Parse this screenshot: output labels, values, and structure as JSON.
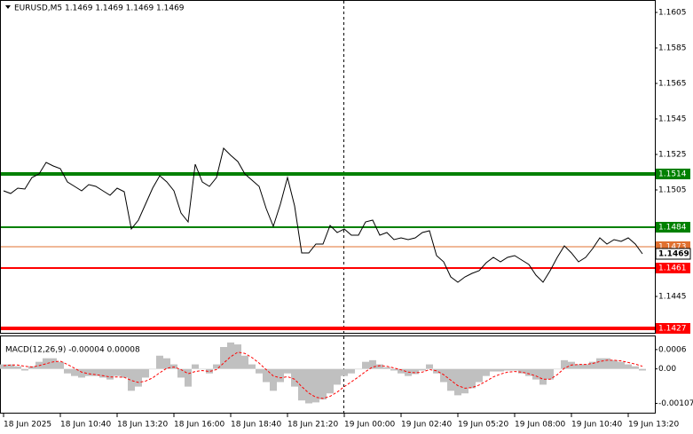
{
  "chart_data": [
    {
      "type": "price",
      "title": "EURUSD,M5  1.1469 1.1469 1.1469 1.1469",
      "xticks": [
        {
          "value": 0,
          "label": "18 Jun 2025"
        },
        {
          "value": 8,
          "label": "18 Jun 10:40"
        },
        {
          "value": 16,
          "label": "18 Jun 13:20"
        },
        {
          "value": 24,
          "label": "18 Jun 16:00"
        },
        {
          "value": 32,
          "label": "18 Jun 18:40"
        },
        {
          "value": 40,
          "label": "18 Jun 21:20"
        },
        {
          "value": 48,
          "label": "19 Jun 00:00"
        },
        {
          "value": 56,
          "label": "19 Jun 02:40"
        },
        {
          "value": 64,
          "label": "19 Jun 05:20"
        },
        {
          "value": 72,
          "label": "19 Jun 08:00"
        },
        {
          "value": 80,
          "label": "19 Jun 10:40"
        },
        {
          "value": 88,
          "label": "19 Jun 13:20"
        }
      ],
      "xlim": [
        -0.5,
        91.75
      ],
      "ylim": [
        1.14245,
        1.1612
      ],
      "yticks": [
        1.1605,
        1.1585,
        1.1565,
        1.1545,
        1.1525,
        1.1505,
        1.1445
      ],
      "series": [
        {
          "color": "#000000",
          "values": [
            1.15045,
            1.1503,
            1.1506,
            1.15055,
            1.1512,
            1.1514,
            1.15205,
            1.15185,
            1.1517,
            1.15095,
            1.1507,
            1.15045,
            1.1508,
            1.1507,
            1.15045,
            1.1502,
            1.1506,
            1.1504,
            1.1483,
            1.1488,
            1.1497,
            1.1506,
            1.1513,
            1.15095,
            1.15045,
            1.1492,
            1.1487,
            1.15195,
            1.15095,
            1.1507,
            1.1512,
            1.15285,
            1.15245,
            1.1521,
            1.1514,
            1.15105,
            1.1507,
            1.14945,
            1.14845,
            1.1497,
            1.1512,
            1.1496,
            1.14695,
            1.14695,
            1.14745,
            1.14745,
            1.1485,
            1.1481,
            1.1483,
            1.14795,
            1.14795,
            1.1487,
            1.1488,
            1.14795,
            1.1481,
            1.1477,
            1.1478,
            1.1477,
            1.1478,
            1.1481,
            1.1482,
            1.1468,
            1.14645,
            1.1456,
            1.1453,
            1.1456,
            1.1458,
            1.14595,
            1.1464,
            1.1467,
            1.14645,
            1.1467,
            1.1468,
            1.14655,
            1.1463,
            1.1457,
            1.1453,
            1.14595,
            1.1467,
            1.14735,
            1.14695,
            1.14645,
            1.1467,
            1.1472,
            1.1478,
            1.14745,
            1.1477,
            1.1476,
            1.1478,
            1.14745,
            1.1469
          ]
        }
      ],
      "levels": [
        {
          "value": 1.1514,
          "color": "#008000",
          "style": "thick"
        },
        {
          "value": 1.1484,
          "color": "#008000",
          "style": "medium"
        },
        {
          "value": 1.1473,
          "color": "#e07030",
          "style": "thin"
        },
        {
          "value": 1.1461,
          "color": "#ff0000",
          "style": "medium"
        },
        {
          "value": 1.1427,
          "color": "#ff0000",
          "style": "thick"
        }
      ],
      "last_price": 1.1469
    },
    {
      "type": "macd",
      "title": "MACD(12,26,9) -0.00004 0.00008",
      "ylim": [
        -0.00136,
        0.00101
      ],
      "yticks": [
        0.0006,
        {
          "value": 0,
          "label": "0.00"
        },
        -0.00107
      ],
      "series": [
        {
          "color": "#c0c0c0",
          "values": [
            0.00014,
            0.00014,
            8e-05,
            -5e-05,
            8e-05,
            0.00022,
            0.00033,
            0.00033,
            0.00022,
            -0.00014,
            -0.00022,
            -0.00027,
            -0.00022,
            -0.00022,
            -0.00027,
            -0.00033,
            -0.00022,
            -0.00027,
            -0.00068,
            -0.00055,
            -0.00027,
            0,
            0.00041,
            0.00033,
            0.00014,
            -0.00027,
            -0.00055,
            0.00014,
            0,
            -0.00014,
            0.00014,
            0.00068,
            0.00082,
            0.00076,
            0.00041,
            0.00014,
            -0.00014,
            -0.00041,
            -0.00068,
            -0.00041,
            -0.00014,
            -0.00055,
            -0.00098,
            -0.00107,
            -0.00104,
            -0.00095,
            -0.00076,
            -0.00049,
            -0.00022,
            -0.00014,
            0,
            0.00022,
            0.00027,
            0.00014,
            5e-05,
            -5e-05,
            -0.00014,
            -0.00022,
            -0.00016,
            -5e-05,
            0.00014,
            -0.00014,
            -0.00041,
            -0.00068,
            -0.00082,
            -0.00076,
            -0.0006,
            -0.00041,
            -0.00022,
            -8e-05,
            -8e-05,
            -5e-05,
            -5e-05,
            -0.00014,
            -0.00022,
            -0.00033,
            -0.00049,
            -0.00033,
            0,
            0.00027,
            0.00022,
            0.00014,
            0.00014,
            0.00022,
            0.00033,
            0.00033,
            0.00027,
            0.00022,
            0.00014,
            8e-05,
            -5e-05
          ]
        },
        {
          "color": "#ff0000",
          "values": [
            0.0001,
            0.00012,
            0.00012,
            8e-05,
            6e-05,
            0.0001,
            0.00016,
            0.00022,
            0.00024,
            0.00014,
            2e-05,
            -0.0001,
            -0.00015,
            -0.00018,
            -0.00021,
            -0.00025,
            -0.00025,
            -0.00026,
            -0.00036,
            -0.00042,
            -0.00038,
            -0.00028,
            -0.00012,
            2e-05,
            6e-05,
            -2e-05,
            -0.00015,
            -8e-05,
            -5e-05,
            -8e-05,
            -2e-05,
            0.00018,
            0.00038,
            0.00052,
            0.00048,
            0.00035,
            0.00018,
            -2e-05,
            -0.00022,
            -0.00028,
            -0.00024,
            -0.00032,
            -0.00055,
            -0.00075,
            -0.00088,
            -0.00092,
            -0.00085,
            -0.00072,
            -0.00055,
            -0.0004,
            -0.00025,
            -8e-05,
            6e-05,
            0.0001,
            8e-05,
            3e-05,
            -3e-05,
            -0.0001,
            -0.00012,
            -0.0001,
            -2e-05,
            -6e-05,
            -0.00018,
            -0.00035,
            -0.00052,
            -0.0006,
            -0.00058,
            -0.0005,
            -0.00038,
            -0.00025,
            -0.00016,
            -0.0001,
            -8e-05,
            -0.0001,
            -0.00015,
            -0.00022,
            -0.00032,
            -0.00032,
            -0.00018,
            2e-05,
            0.00012,
            0.00014,
            0.00014,
            0.00017,
            0.00023,
            0.00027,
            0.00027,
            0.00025,
            0.0002,
            0.00015,
            8e-05
          ]
        }
      ]
    }
  ]
}
